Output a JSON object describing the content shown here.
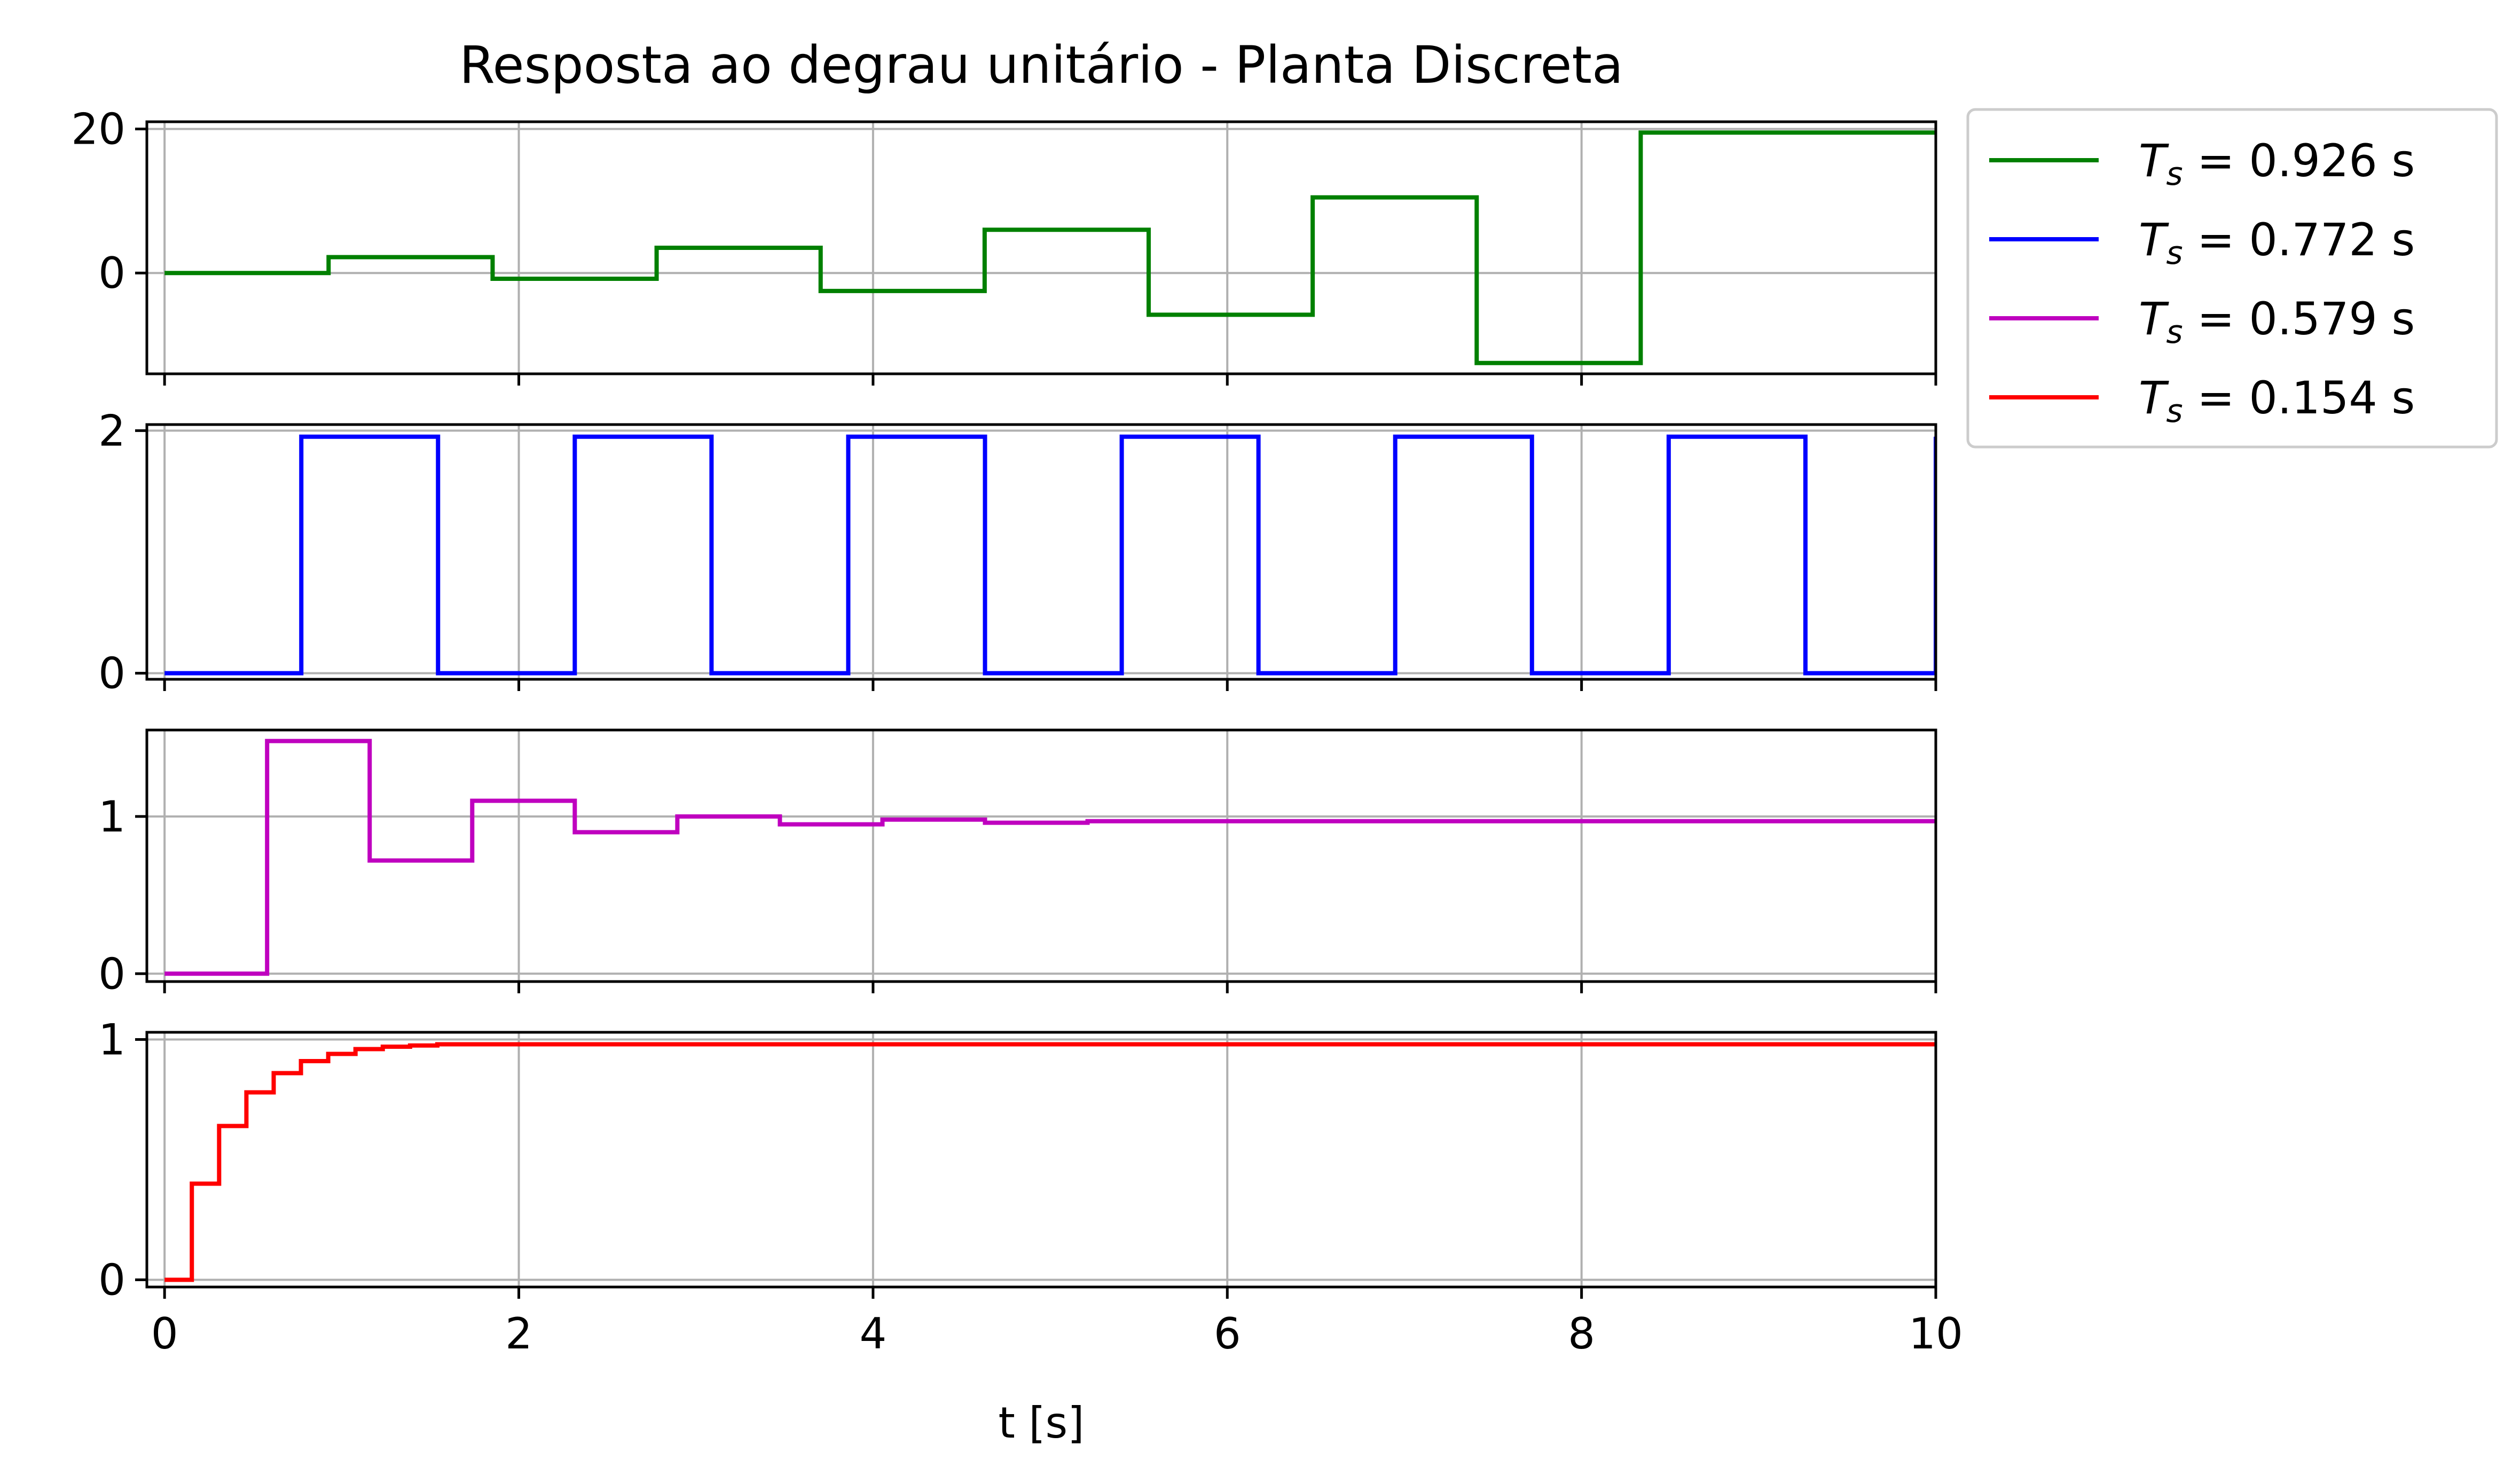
{
  "title": "Resposta ao degrau unitário - Planta Discreta",
  "xlabel": "t [s]",
  "colors": {
    "green": "#008000",
    "blue": "#0000ff",
    "magenta": "#bf00bf",
    "red": "#ff0000",
    "grid": "#b0b0b0"
  },
  "legend": {
    "placement": "outside-top-right",
    "entries": [
      {
        "symbol": "T",
        "sub": "s",
        "text": " = 0.926 s",
        "color": "#008000"
      },
      {
        "symbol": "T",
        "sub": "s",
        "text": " = 0.772 s",
        "color": "#0000ff"
      },
      {
        "symbol": "T",
        "sub": "s",
        "text": " = 0.579 s",
        "color": "#bf00bf"
      },
      {
        "symbol": "T",
        "sub": "s",
        "text": " = 0.154 s",
        "color": "#ff0000"
      }
    ]
  },
  "chart_data": [
    {
      "type": "line",
      "step": true,
      "series": [
        {
          "name": "T_s = 0.926 s",
          "color": "#008000",
          "Ts": 0.926,
          "x": [
            0,
            0.926,
            1.852,
            2.778,
            3.704,
            4.63,
            5.556,
            6.482,
            7.408,
            8.334,
            9.26,
            10.186
          ],
          "values": [
            0,
            2.2,
            -0.8,
            3.5,
            -2.5,
            6.0,
            -5.8,
            10.5,
            -12.5,
            19.5,
            19.5,
            19.5
          ]
        }
      ],
      "xlim": [
        -0.1,
        10
      ],
      "ylim": [
        -14,
        21
      ],
      "xticks": [
        0,
        2,
        4,
        6,
        8,
        10
      ],
      "yticks": [
        0,
        20
      ],
      "ytick_labels": [
        "0",
        "20"
      ],
      "grid": true
    },
    {
      "type": "line",
      "step": true,
      "series": [
        {
          "name": "T_s = 0.772 s",
          "color": "#0000ff",
          "Ts": 0.772,
          "x": [
            0,
            0.772,
            1.544,
            2.316,
            3.088,
            3.86,
            4.632,
            5.404,
            6.176,
            6.948,
            7.72,
            8.492,
            9.264,
            10.036
          ],
          "values": [
            0,
            1.95,
            0,
            1.95,
            0,
            1.95,
            0,
            1.95,
            0,
            1.95,
            0,
            1.95,
            0,
            1.95
          ]
        }
      ],
      "xlim": [
        -0.1,
        10
      ],
      "ylim": [
        -0.05,
        2.05
      ],
      "xticks": [
        0,
        2,
        4,
        6,
        8,
        10
      ],
      "yticks": [
        0,
        2
      ],
      "ytick_labels": [
        "0",
        "2"
      ],
      "grid": true
    },
    {
      "type": "line",
      "step": true,
      "series": [
        {
          "name": "T_s = 0.579 s",
          "color": "#bf00bf",
          "Ts": 0.579,
          "x": [
            0,
            0.579,
            1.158,
            1.737,
            2.316,
            2.895,
            3.474,
            4.053,
            4.632,
            5.211,
            5.79,
            6.369,
            6.948,
            7.527,
            8.106,
            8.685,
            9.264,
            9.843
          ],
          "values": [
            0,
            1.48,
            0.72,
            1.1,
            0.9,
            1.0,
            0.95,
            0.98,
            0.96,
            0.97,
            0.97,
            0.97,
            0.97,
            0.97,
            0.97,
            0.97,
            0.97,
            0.97
          ]
        }
      ],
      "xlim": [
        -0.1,
        10
      ],
      "ylim": [
        -0.05,
        1.55
      ],
      "xticks": [
        0,
        2,
        4,
        6,
        8,
        10
      ],
      "yticks": [
        0,
        1
      ],
      "ytick_labels": [
        "0",
        "1"
      ],
      "grid": true
    },
    {
      "type": "line",
      "step": true,
      "series": [
        {
          "name": "T_s = 0.154 s",
          "color": "#ff0000",
          "Ts": 0.154,
          "x": [
            0,
            0.154,
            0.308,
            0.462,
            0.616,
            0.77,
            0.924,
            1.078,
            1.232,
            1.386,
            1.54,
            1.694,
            1.848,
            2.002,
            2.156
          ],
          "values": [
            0,
            0.4,
            0.64,
            0.78,
            0.86,
            0.91,
            0.94,
            0.96,
            0.97,
            0.975,
            0.98,
            0.98,
            0.98,
            0.98,
            0.98
          ]
        }
      ],
      "xlim": [
        -0.1,
        10
      ],
      "ylim": [
        -0.03,
        1.03
      ],
      "xticks": [
        0,
        2,
        4,
        6,
        8,
        10
      ],
      "xtick_labels": [
        "0",
        "2",
        "4",
        "6",
        "8",
        "10"
      ],
      "yticks": [
        0,
        1
      ],
      "ytick_labels": [
        "0",
        "1"
      ],
      "grid": true
    }
  ]
}
